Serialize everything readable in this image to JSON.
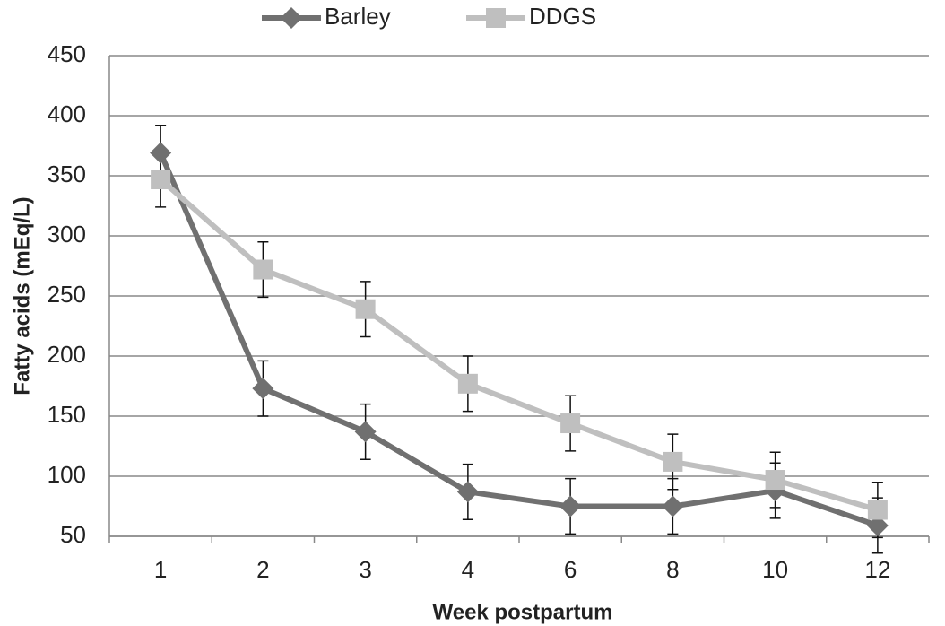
{
  "chart_data": {
    "type": "line",
    "x_label": "Week postpartum",
    "y_label": "Fatty acids (mEq/L)",
    "categories": [
      "1",
      "2",
      "3",
      "4",
      "6",
      "8",
      "10",
      "12"
    ],
    "series": [
      {
        "name": "Barley",
        "color": "#707070",
        "marker": "diamond",
        "values": [
          369,
          173,
          137,
          87,
          75,
          75,
          88,
          59
        ],
        "errors": [
          23,
          23,
          23,
          23,
          23,
          23,
          23,
          23
        ]
      },
      {
        "name": "DDGS",
        "color": "#bfbfbf",
        "marker": "square",
        "values": [
          347,
          272,
          239,
          177,
          144,
          112,
          97,
          72
        ],
        "errors": [
          23,
          23,
          23,
          23,
          23,
          23,
          23,
          23
        ]
      }
    ],
    "ylim": [
      50,
      450
    ],
    "yticks": [
      50,
      100,
      150,
      200,
      250,
      300,
      350,
      400,
      450
    ],
    "grid": true,
    "legend": "top"
  }
}
